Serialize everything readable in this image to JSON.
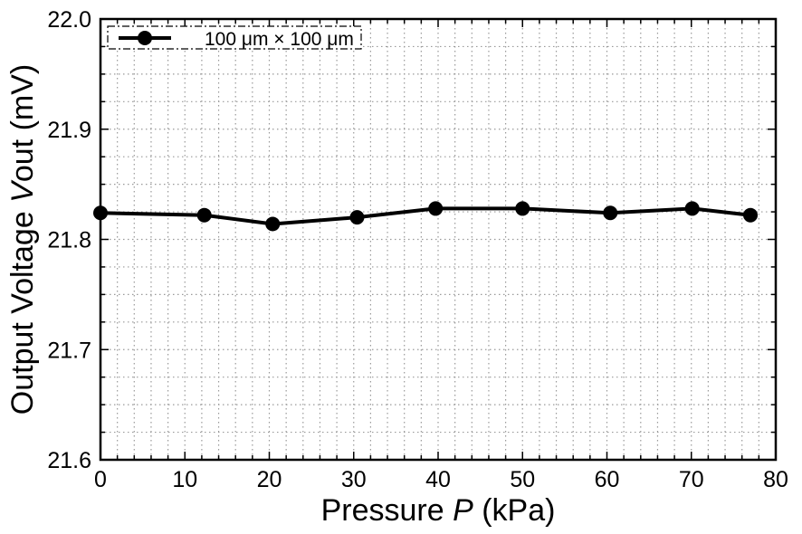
{
  "chart_data": {
    "type": "line",
    "xlabel_prefix": "Pressure ",
    "xlabel_var": "P",
    "xlabel_suffix": " (kPa)",
    "ylabel_prefix": "Output Voltage ",
    "ylabel_var": "V",
    "ylabel_suffix": "out (mV)",
    "xlim": [
      0,
      80
    ],
    "ylim": [
      21.6,
      22.0
    ],
    "x_ticks": [
      "0",
      "10",
      "20",
      "30",
      "40",
      "50",
      "60",
      "70",
      "80"
    ],
    "y_ticks": [
      "21.6",
      "21.7",
      "21.8",
      "21.9",
      "22.0"
    ],
    "x_minor_step": 2,
    "y_minor_step": 0.025,
    "grid": true,
    "legend_position": "top-left",
    "series": [
      {
        "name": "100 μm × 100 μm",
        "color": "#000000",
        "marker": "circle",
        "x": [
          0,
          12.3,
          20.4,
          30.4,
          39.7,
          50.0,
          60.4,
          70.1,
          77.0
        ],
        "y": [
          21.824,
          21.822,
          21.814,
          21.82,
          21.828,
          21.828,
          21.824,
          21.828,
          21.822
        ]
      }
    ]
  }
}
